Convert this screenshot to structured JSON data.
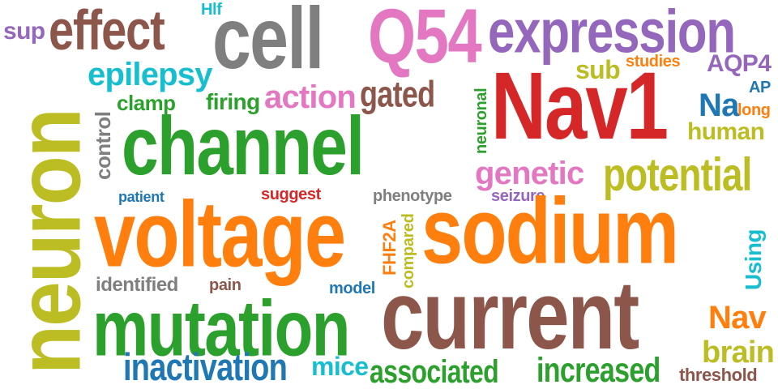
{
  "colors": {
    "brown": "#8c564b",
    "gray": "#7f7f7f",
    "pink": "#e377c2",
    "purple": "#9467bd",
    "red": "#d62728",
    "green": "#2ca02c",
    "orange": "#ff7f0e",
    "olive": "#bcbd22",
    "cyan": "#17becf",
    "blue": "#1f77b4"
  },
  "words": {
    "sup": "sup",
    "effect": "effect",
    "hlf": "Hlf",
    "cell": "cell",
    "q54": "Q54",
    "expression": "expression",
    "epilepsy": "epilepsy",
    "sub": "sub",
    "studies": "studies",
    "aqp4": "AQP4",
    "ap": "AP",
    "control": "control",
    "clamp": "clamp",
    "firing": "firing",
    "action": "action",
    "gated": "gated",
    "neuronal": "neuronal",
    "nav1": "Nav1",
    "na": "Na",
    "long": "long",
    "channel": "channel",
    "human": "human",
    "genetic": "genetic",
    "potential": "potential",
    "neuron": "neuron",
    "patient": "patient",
    "suggest": "suggest",
    "phenotype": "phenotype",
    "seizure": "seizure",
    "voltage": "voltage",
    "sodium": "sodium",
    "fhf2a": "FHF2A",
    "compared": "compared",
    "using": "Using",
    "identified": "identified",
    "pain": "pain",
    "model": "model",
    "current": "current",
    "mutation": "mutation",
    "nav": "Nav",
    "brain": "brain",
    "inactivation": "inactivation",
    "mice": "mice",
    "associated": "associated",
    "increased": "increased",
    "threshold": "threshold"
  }
}
